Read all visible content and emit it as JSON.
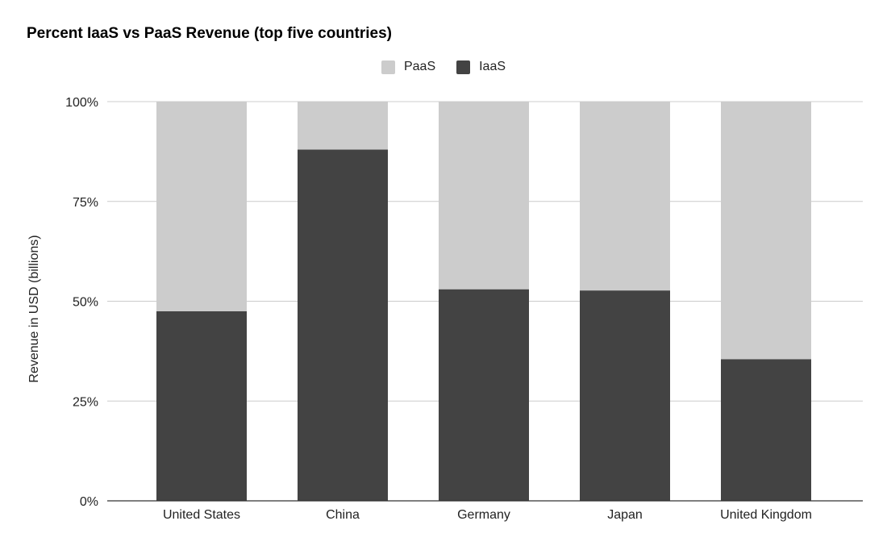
{
  "chart_data": {
    "type": "bar",
    "stacked": true,
    "percent": true,
    "title": "Percent IaaS vs PaaS Revenue (top five countries)",
    "xlabel": "",
    "ylabel": "Revenue in USD (billions)",
    "ylim": [
      0,
      100
    ],
    "yticks": [
      0,
      25,
      50,
      75,
      100
    ],
    "ytick_labels": [
      "0%",
      "25%",
      "50%",
      "75%",
      "100%"
    ],
    "categories": [
      "United States",
      "China",
      "Germany",
      "Japan",
      "United Kingdom"
    ],
    "series": [
      {
        "name": "IaaS",
        "color": "#434343",
        "values": [
          47.5,
          88,
          53,
          52.7,
          35.5
        ]
      },
      {
        "name": "PaaS",
        "color": "#cccccc",
        "values": [
          52.5,
          12,
          47,
          47.3,
          64.5
        ]
      }
    ],
    "legend": {
      "position": "top",
      "order": [
        "PaaS",
        "IaaS"
      ]
    },
    "grid": true
  }
}
